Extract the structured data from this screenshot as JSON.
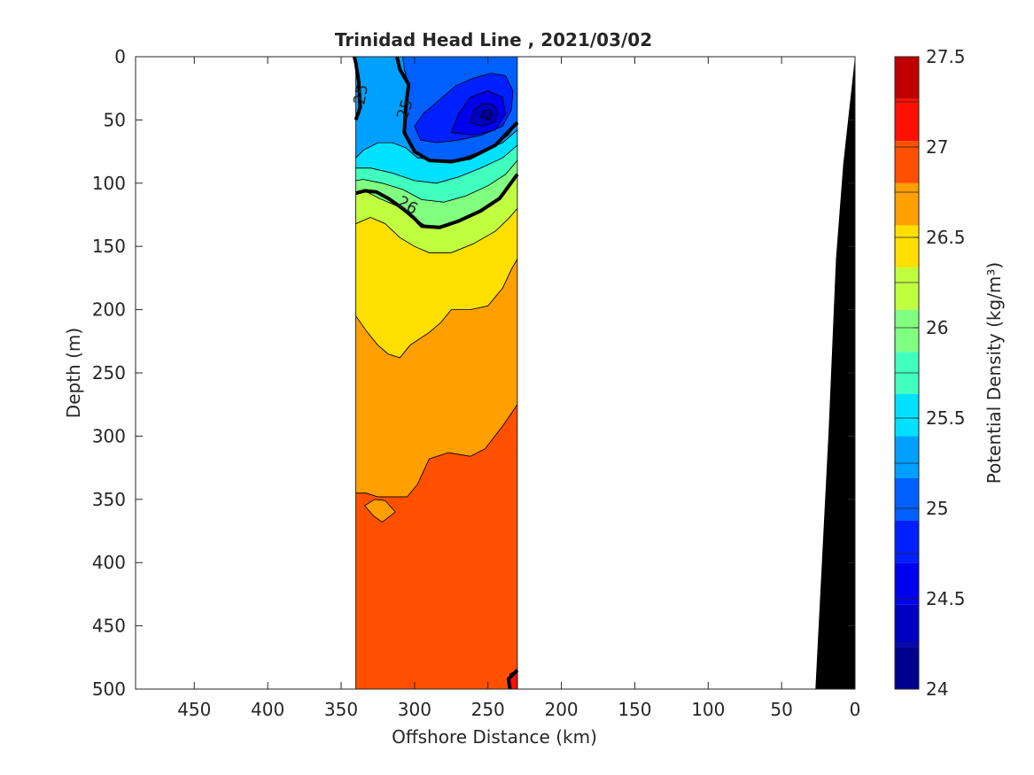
{
  "chart_data": {
    "type": "heatmap",
    "title": "Trinidad Head Line , 2021/03/02",
    "xlabel": "Offshore Distance (km)",
    "ylabel": "Depth (m)",
    "xlim": [
      490,
      0
    ],
    "ylim": [
      0,
      500
    ],
    "x_reversed": true,
    "y_reversed": true,
    "x_ticks": [
      450,
      400,
      350,
      300,
      250,
      200,
      150,
      100,
      50,
      0
    ],
    "y_ticks": [
      0,
      50,
      100,
      150,
      200,
      250,
      300,
      350,
      400,
      450,
      500
    ],
    "data_extent": {
      "x": [
        340,
        230
      ],
      "y": [
        0,
        500
      ]
    },
    "colorbar": {
      "label": "Potential Density (kg/m³)",
      "range": [
        24,
        27.5
      ],
      "ticks": [
        24,
        24.5,
        25,
        25.5,
        26,
        26.5,
        27,
        27.5
      ],
      "levels": [
        24.0,
        24.25,
        24.5,
        24.75,
        25.0,
        25.25,
        25.5,
        25.75,
        26.0,
        26.25,
        26.5,
        26.75,
        27.0,
        27.25
      ],
      "colors": [
        "#00008f",
        "#0000bf",
        "#0000ef",
        "#0020ff",
        "#0060ff",
        "#00a0ff",
        "#00e0ff",
        "#40ffbf",
        "#80ff80",
        "#c0ff40",
        "#ffdf00",
        "#ff9f00",
        "#ff5000",
        "#ff1000",
        "#bf0000"
      ]
    },
    "contour_labels": [
      {
        "text": "25",
        "x": 336,
        "y": 30,
        "rotate": -80
      },
      {
        "text": "25",
        "x": 306,
        "y": 42,
        "rotate": -72
      },
      {
        "text": "26",
        "x": 305,
        "y": 118,
        "rotate": 30
      }
    ],
    "fills": [
      {
        "color": "#ff5000",
        "points": [
          [
            340,
            500
          ],
          [
            230,
            500
          ],
          [
            230,
            275
          ],
          [
            240,
            292
          ],
          [
            252,
            310
          ],
          [
            262,
            316
          ],
          [
            277,
            313
          ],
          [
            290,
            318
          ],
          [
            298,
            338
          ],
          [
            305,
            348
          ],
          [
            318,
            348
          ],
          [
            325,
            348
          ],
          [
            333,
            345
          ],
          [
            340,
            345
          ]
        ]
      },
      {
        "color": "#ff9f00",
        "points": [
          [
            340,
            345
          ],
          [
            333,
            345
          ],
          [
            325,
            348
          ],
          [
            318,
            348
          ],
          [
            305,
            348
          ],
          [
            298,
            338
          ],
          [
            290,
            318
          ],
          [
            277,
            313
          ],
          [
            262,
            316
          ],
          [
            252,
            310
          ],
          [
            240,
            292
          ],
          [
            230,
            275
          ],
          [
            230,
            160
          ],
          [
            234,
            168
          ],
          [
            240,
            183
          ],
          [
            250,
            197
          ],
          [
            262,
            200
          ],
          [
            275,
            200
          ],
          [
            282,
            210
          ],
          [
            290,
            218
          ],
          [
            303,
            228
          ],
          [
            310,
            238
          ],
          [
            318,
            235
          ],
          [
            325,
            228
          ],
          [
            332,
            218
          ],
          [
            340,
            205
          ]
        ]
      },
      {
        "color": "#ff9f00",
        "points": [
          [
            334,
            355
          ],
          [
            327,
            350
          ],
          [
            320,
            351
          ],
          [
            313,
            360
          ],
          [
            322,
            368
          ],
          [
            328,
            363
          ]
        ]
      },
      {
        "color": "#ffdf00",
        "points": [
          [
            340,
            205
          ],
          [
            332,
            218
          ],
          [
            325,
            228
          ],
          [
            318,
            235
          ],
          [
            310,
            238
          ],
          [
            303,
            228
          ],
          [
            290,
            218
          ],
          [
            282,
            210
          ],
          [
            275,
            200
          ],
          [
            262,
            200
          ],
          [
            250,
            197
          ],
          [
            240,
            183
          ],
          [
            234,
            168
          ],
          [
            230,
            160
          ],
          [
            230,
            120
          ],
          [
            236,
            128
          ],
          [
            245,
            138
          ],
          [
            260,
            148
          ],
          [
            275,
            155
          ],
          [
            290,
            155
          ],
          [
            300,
            150
          ],
          [
            310,
            143
          ],
          [
            320,
            132
          ],
          [
            330,
            127
          ],
          [
            340,
            132
          ]
        ]
      },
      {
        "color": "#c0ff40",
        "points": [
          [
            340,
            132
          ],
          [
            330,
            127
          ],
          [
            320,
            132
          ],
          [
            310,
            143
          ],
          [
            300,
            150
          ],
          [
            290,
            155
          ],
          [
            275,
            155
          ],
          [
            260,
            148
          ],
          [
            245,
            138
          ],
          [
            236,
            128
          ],
          [
            230,
            120
          ],
          [
            230,
            93
          ],
          [
            237,
            105
          ],
          [
            245,
            115
          ],
          [
            258,
            123
          ],
          [
            270,
            130
          ],
          [
            280,
            134
          ],
          [
            292,
            134
          ],
          [
            303,
            126
          ],
          [
            312,
            118
          ],
          [
            324,
            112
          ],
          [
            334,
            106
          ],
          [
            340,
            108
          ]
        ]
      },
      {
        "color": "#80ff80",
        "points": [
          [
            340,
            108
          ],
          [
            334,
            106
          ],
          [
            324,
            112
          ],
          [
            312,
            118
          ],
          [
            303,
            126
          ],
          [
            292,
            134
          ],
          [
            280,
            134
          ],
          [
            270,
            130
          ],
          [
            258,
            123
          ],
          [
            245,
            115
          ],
          [
            237,
            105
          ],
          [
            230,
            93
          ],
          [
            230,
            82
          ],
          [
            238,
            93
          ],
          [
            250,
            102
          ],
          [
            265,
            110
          ],
          [
            280,
            115
          ],
          [
            295,
            113
          ],
          [
            308,
            105
          ],
          [
            322,
            100
          ],
          [
            335,
            97
          ],
          [
            340,
            98
          ]
        ]
      },
      {
        "color": "#40ffbf",
        "points": [
          [
            340,
            98
          ],
          [
            335,
            97
          ],
          [
            322,
            100
          ],
          [
            308,
            105
          ],
          [
            295,
            113
          ],
          [
            280,
            115
          ],
          [
            265,
            110
          ],
          [
            250,
            102
          ],
          [
            238,
            93
          ],
          [
            230,
            82
          ],
          [
            230,
            70
          ],
          [
            240,
            80
          ],
          [
            255,
            88
          ],
          [
            270,
            95
          ],
          [
            285,
            100
          ],
          [
            300,
            98
          ],
          [
            315,
            92
          ],
          [
            330,
            88
          ],
          [
            340,
            88
          ]
        ]
      },
      {
        "color": "#00e0ff",
        "points": [
          [
            340,
            88
          ],
          [
            330,
            88
          ],
          [
            315,
            92
          ],
          [
            300,
            98
          ],
          [
            285,
            100
          ],
          [
            270,
            95
          ],
          [
            255,
            88
          ],
          [
            240,
            80
          ],
          [
            230,
            70
          ],
          [
            230,
            58
          ],
          [
            240,
            68
          ],
          [
            255,
            75
          ],
          [
            270,
            80
          ],
          [
            285,
            82
          ],
          [
            298,
            80
          ],
          [
            306,
            72
          ],
          [
            315,
            68
          ],
          [
            325,
            68
          ],
          [
            335,
            74
          ],
          [
            340,
            80
          ]
        ]
      },
      {
        "color": "#00a0ff",
        "points": [
          [
            340,
            80
          ],
          [
            335,
            74
          ],
          [
            325,
            68
          ],
          [
            315,
            68
          ],
          [
            306,
            72
          ],
          [
            298,
            80
          ],
          [
            285,
            82
          ],
          [
            270,
            80
          ],
          [
            255,
            75
          ],
          [
            240,
            68
          ],
          [
            230,
            58
          ],
          [
            230,
            52
          ],
          [
            236,
            62
          ],
          [
            248,
            72
          ],
          [
            262,
            78
          ],
          [
            275,
            83
          ],
          [
            290,
            82
          ],
          [
            300,
            75
          ],
          [
            307,
            60
          ],
          [
            306,
            40
          ],
          [
            304,
            22
          ],
          [
            307,
            10
          ],
          [
            308,
            0
          ],
          [
            340,
            0
          ]
        ]
      },
      {
        "color": "#0060ff",
        "points": [
          [
            308,
            0
          ],
          [
            307,
            10
          ],
          [
            304,
            22
          ],
          [
            306,
            40
          ],
          [
            307,
            60
          ],
          [
            300,
            75
          ],
          [
            290,
            82
          ],
          [
            275,
            83
          ],
          [
            262,
            78
          ],
          [
            248,
            72
          ],
          [
            236,
            62
          ],
          [
            230,
            52
          ],
          [
            230,
            0
          ]
        ]
      },
      {
        "color": "#0020ff",
        "points": [
          [
            300,
            55
          ],
          [
            294,
            45
          ],
          [
            284,
            35
          ],
          [
            272,
            23
          ],
          [
            260,
            17
          ],
          [
            248,
            13
          ],
          [
            238,
            15
          ],
          [
            233,
            27
          ],
          [
            234,
            42
          ],
          [
            240,
            55
          ],
          [
            254,
            62
          ],
          [
            270,
            66
          ],
          [
            285,
            68
          ],
          [
            296,
            66
          ]
        ]
      },
      {
        "color": "#0000ef",
        "points": [
          [
            275,
            60
          ],
          [
            270,
            45
          ],
          [
            262,
            32
          ],
          [
            250,
            27
          ],
          [
            240,
            32
          ],
          [
            238,
            45
          ],
          [
            245,
            58
          ],
          [
            260,
            62
          ]
        ]
      },
      {
        "color": "#0000bf",
        "points": [
          [
            262,
            52
          ],
          [
            260,
            43
          ],
          [
            254,
            37
          ],
          [
            246,
            38
          ],
          [
            243,
            45
          ],
          [
            246,
            52
          ],
          [
            254,
            55
          ]
        ]
      },
      {
        "color": "#00008f",
        "points": [
          [
            255,
            48
          ],
          [
            253,
            43
          ],
          [
            249,
            42
          ],
          [
            247,
            46
          ],
          [
            249,
            50
          ]
        ]
      },
      {
        "color": "#ff1000",
        "points": [
          [
            235,
            500
          ],
          [
            230,
            500
          ],
          [
            230,
            485
          ],
          [
            235,
            488
          ]
        ]
      }
    ],
    "contour_lines": [
      {
        "points": [
          [
            340,
            50
          ],
          [
            337,
            40
          ],
          [
            338,
            20
          ],
          [
            340,
            5
          ],
          [
            341,
            0
          ]
        ]
      },
      {
        "points": [
          [
            312,
            0
          ],
          [
            310,
            10
          ],
          [
            304,
            22
          ],
          [
            306,
            40
          ],
          [
            307,
            60
          ],
          [
            300,
            75
          ],
          [
            290,
            82
          ],
          [
            275,
            83
          ],
          [
            262,
            80
          ],
          [
            245,
            70
          ],
          [
            230,
            52
          ]
        ]
      },
      {
        "points": [
          [
            340,
            108
          ],
          [
            334,
            106
          ],
          [
            326,
            107
          ],
          [
            318,
            112
          ],
          [
            308,
            120
          ],
          [
            300,
            128
          ],
          [
            295,
            134
          ],
          [
            283,
            135
          ],
          [
            270,
            130
          ],
          [
            255,
            122
          ],
          [
            242,
            112
          ],
          [
            230,
            93
          ]
        ]
      },
      {
        "points": [
          [
            235,
            500
          ],
          [
            236,
            492
          ],
          [
            230,
            485
          ]
        ]
      }
    ],
    "bathymetry": {
      "color": "#000000",
      "points": [
        [
          27,
          500
        ],
        [
          18,
          296
        ],
        [
          13,
          160
        ],
        [
          8,
          85
        ],
        [
          0,
          0
        ],
        [
          0,
          500
        ]
      ]
    }
  }
}
